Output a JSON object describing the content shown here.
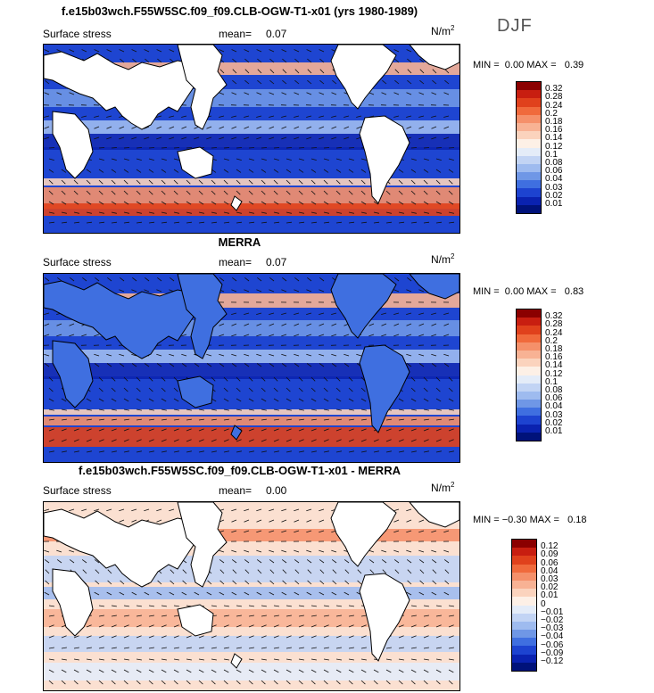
{
  "season": "DJF",
  "panels": [
    {
      "title": "f.e15b03wch.F55W5SC.f09_f09.CLB-OGW-T1-x01 (yrs 1980-1989)",
      "variable": "Surface stress",
      "mean_label": "mean=",
      "mean_value": "0.07",
      "units": "N/m",
      "units_exp": "2",
      "min_label": "MIN =",
      "min_value": "0.00",
      "max_label": "MAX =",
      "max_value": "0.39",
      "levels": [
        "0.32",
        "0.28",
        "0.24",
        "0.2",
        "0.18",
        "0.16",
        "0.14",
        "0.12",
        "0.1",
        "0.08",
        "0.06",
        "0.04",
        "0.03",
        "0.02",
        "0.01"
      ],
      "colors": [
        "#8b0000",
        "#c81e10",
        "#e0411c",
        "#f06a3c",
        "#f5906a",
        "#f8b294",
        "#fbd3bd",
        "#fdf0e6",
        "#e4ecf8",
        "#c2d4f4",
        "#9ebbef",
        "#6f97e6",
        "#3f6fe0",
        "#1d43d0",
        "#0a22b0",
        "#00127a"
      ],
      "type": "model"
    },
    {
      "title": "MERRA",
      "variable": "Surface stress",
      "mean_label": "mean=",
      "mean_value": "0.07",
      "units": "N/m",
      "units_exp": "2",
      "min_label": "MIN =",
      "min_value": "0.00",
      "max_label": "MAX =",
      "max_value": "0.83",
      "levels": [
        "0.32",
        "0.28",
        "0.24",
        "0.2",
        "0.18",
        "0.16",
        "0.14",
        "0.12",
        "0.1",
        "0.08",
        "0.06",
        "0.04",
        "0.03",
        "0.02",
        "0.01"
      ],
      "colors": [
        "#8b0000",
        "#c81e10",
        "#e0411c",
        "#f06a3c",
        "#f5906a",
        "#f8b294",
        "#fbd3bd",
        "#fdf0e6",
        "#e4ecf8",
        "#c2d4f4",
        "#9ebbef",
        "#6f97e6",
        "#3f6fe0",
        "#1d43d0",
        "#0a22b0",
        "#00127a"
      ],
      "type": "obs"
    },
    {
      "title": "f.e15b03wch.F55W5SC.f09_f09.CLB-OGW-T1-x01 - MERRA",
      "variable": "Surface stress",
      "mean_label": "mean=",
      "mean_value": "0.00",
      "units": "N/m",
      "units_exp": "2",
      "min_label": "MIN =",
      "min_value": "−0.30",
      "max_label": "MAX =",
      "max_value": "0.18",
      "levels": [
        "0.12",
        "0.09",
        "0.06",
        "0.04",
        "0.03",
        "0.02",
        "0.01",
        "0",
        "−0.01",
        "−0.02",
        "−0.03",
        "−0.04",
        "−0.06",
        "−0.09",
        "−0.12"
      ],
      "colors": [
        "#8b0000",
        "#c81e10",
        "#e0411c",
        "#f06a3c",
        "#f5906a",
        "#f8b294",
        "#fbd3bd",
        "#fdf0e6",
        "#e4ecf8",
        "#c2d4f4",
        "#9ebbef",
        "#6f97e6",
        "#3f6fe0",
        "#1d43d0",
        "#0a22b0",
        "#00127a"
      ],
      "type": "diff"
    }
  ]
}
